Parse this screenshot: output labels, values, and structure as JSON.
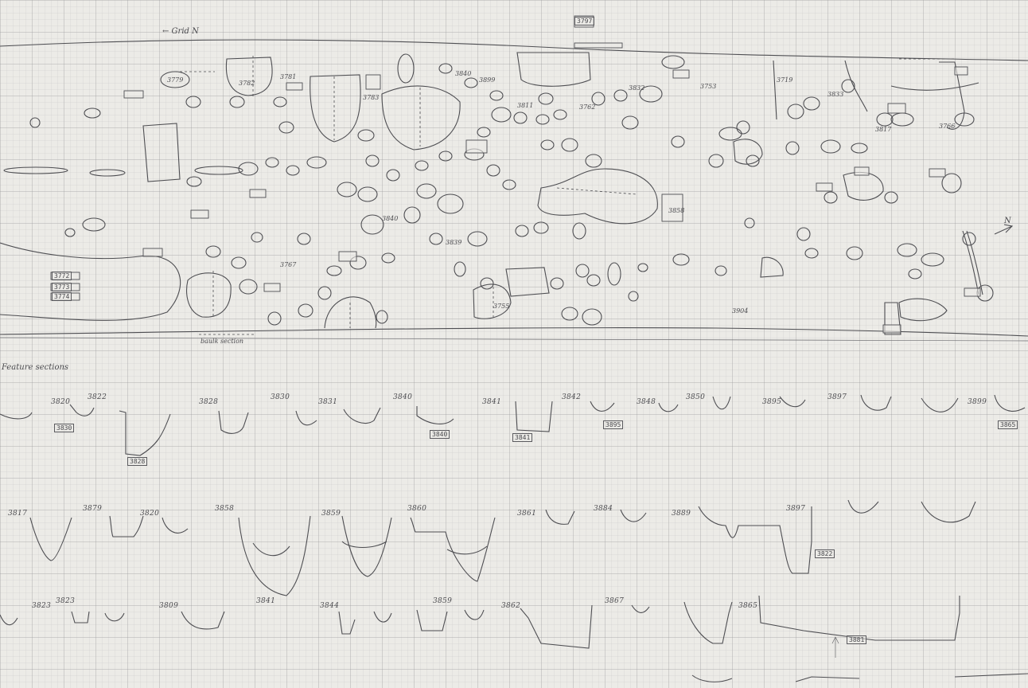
{
  "plan": {
    "title": "← Grid N",
    "legend_text": "Feature sections",
    "top_tag": "3797",
    "baulk_label": "baulk section",
    "left_feature_labels": [
      "3772",
      "3773",
      "3774"
    ]
  },
  "feature_tags": [
    "3779",
    "3782",
    "3781",
    "3783",
    "3840",
    "3899",
    "3811",
    "3762",
    "3832",
    "3753",
    "3719",
    "3833",
    "3817",
    "3766",
    "3839",
    "3840",
    "3767",
    "3755",
    "3858",
    "3904"
  ],
  "section_rows": {
    "row1": [
      "3820",
      "3822",
      "3828",
      "3830",
      "3831",
      "3840",
      "3841",
      "3842",
      "3848",
      "3850",
      "3895",
      "3897",
      "3899"
    ],
    "row2": [
      "3817",
      "3879",
      "3820",
      "3858",
      "3859",
      "3860",
      "3861",
      "3884",
      "3889",
      "3897"
    ],
    "row3": [
      "3823",
      "3823",
      "3809",
      "3841",
      "3844",
      "3859",
      "3862",
      "3867",
      "3865"
    ]
  },
  "section_tags": [
    "3828",
    "3830",
    "3840",
    "3841",
    "3895",
    "3822",
    "3865",
    "3881"
  ],
  "north_arrow": "N"
}
